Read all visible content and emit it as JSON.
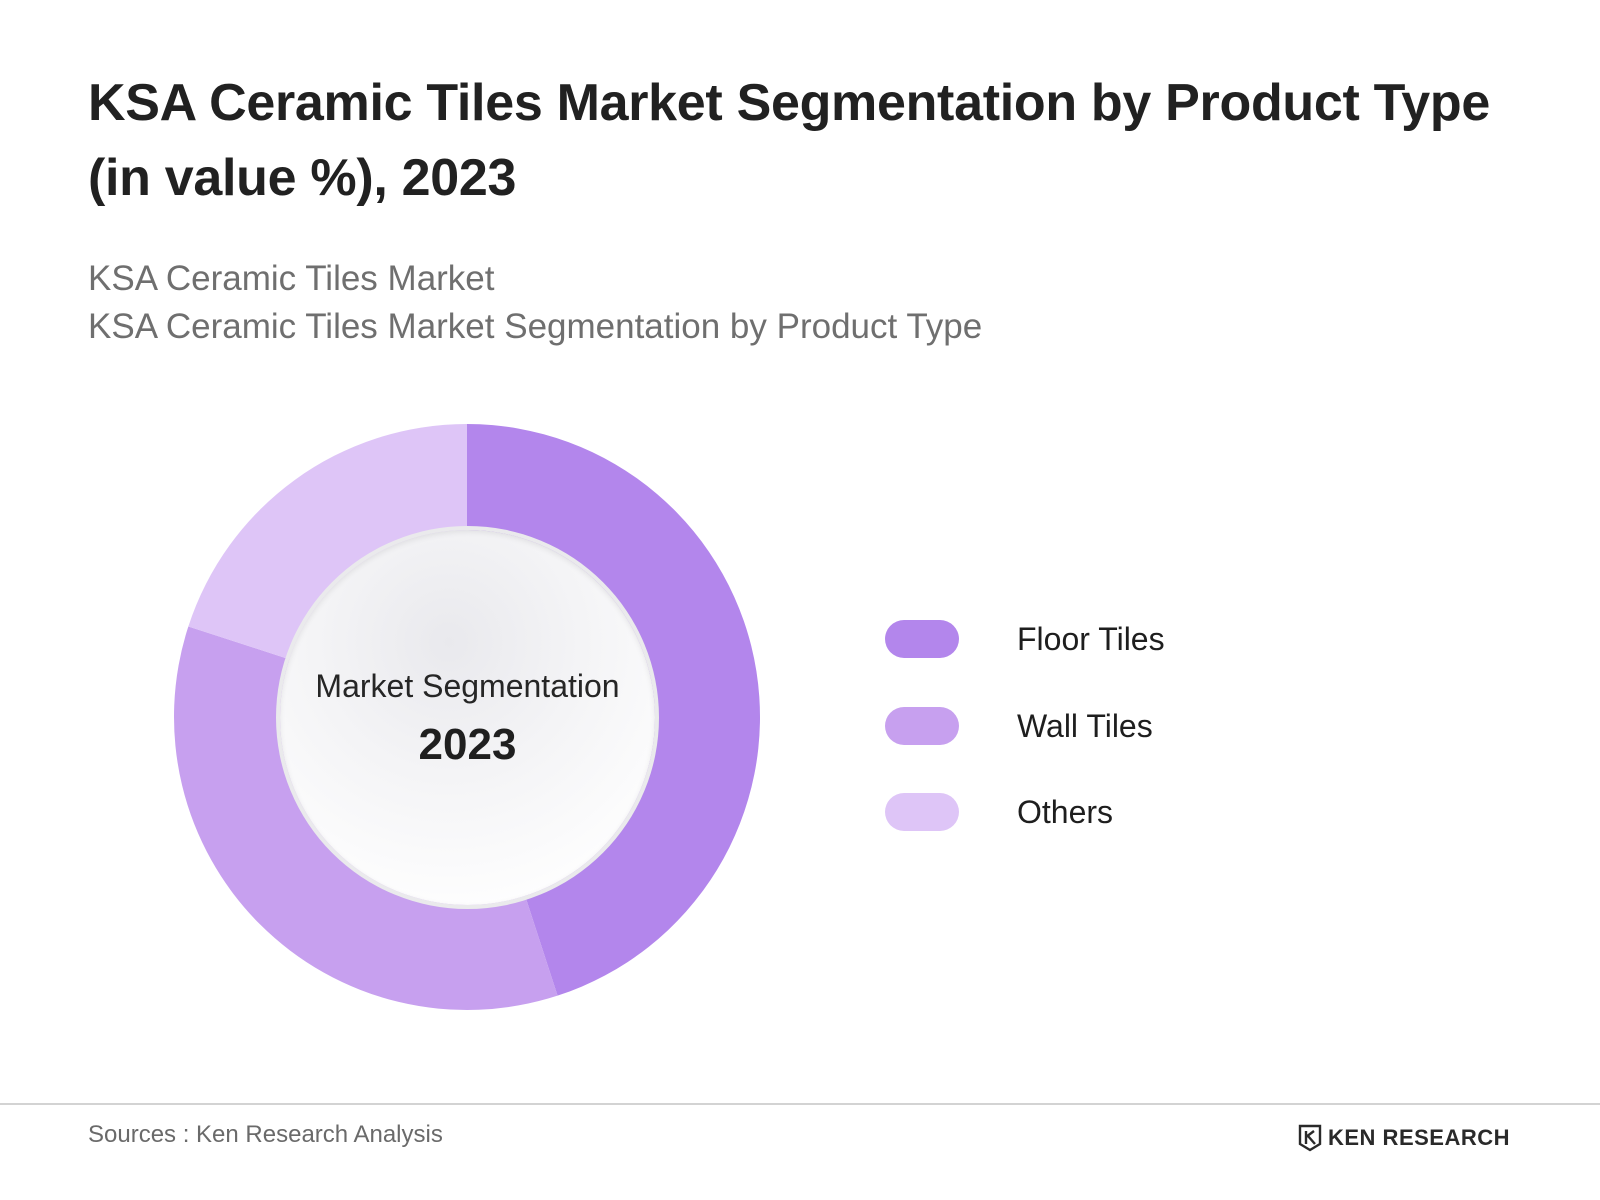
{
  "header": {
    "title": "KSA Ceramic Tiles Market Segmentation by Product Type (in value %), 2023",
    "subtitle_line1": "KSA Ceramic Tiles Market",
    "subtitle_line2": "KSA Ceramic Tiles Market Segmentation by Product Type"
  },
  "center": {
    "line1": "Market Segmentation",
    "line2": "2023"
  },
  "chart_data": {
    "type": "pie",
    "variant": "donut",
    "title": "KSA Ceramic Tiles Market Segmentation by Product Type (in value %), 2023",
    "categories": [
      "Floor Tiles",
      "Wall Tiles",
      "Others"
    ],
    "values": [
      45,
      35,
      20
    ],
    "colors": [
      "#b386ec",
      "#c7a0ef",
      "#dec5f7"
    ],
    "legend_position": "right"
  },
  "footer": {
    "source": "Sources : Ken Research Analysis",
    "brand": "KEN RESEARCH",
    "brand_icon": "ken-research-logo"
  }
}
